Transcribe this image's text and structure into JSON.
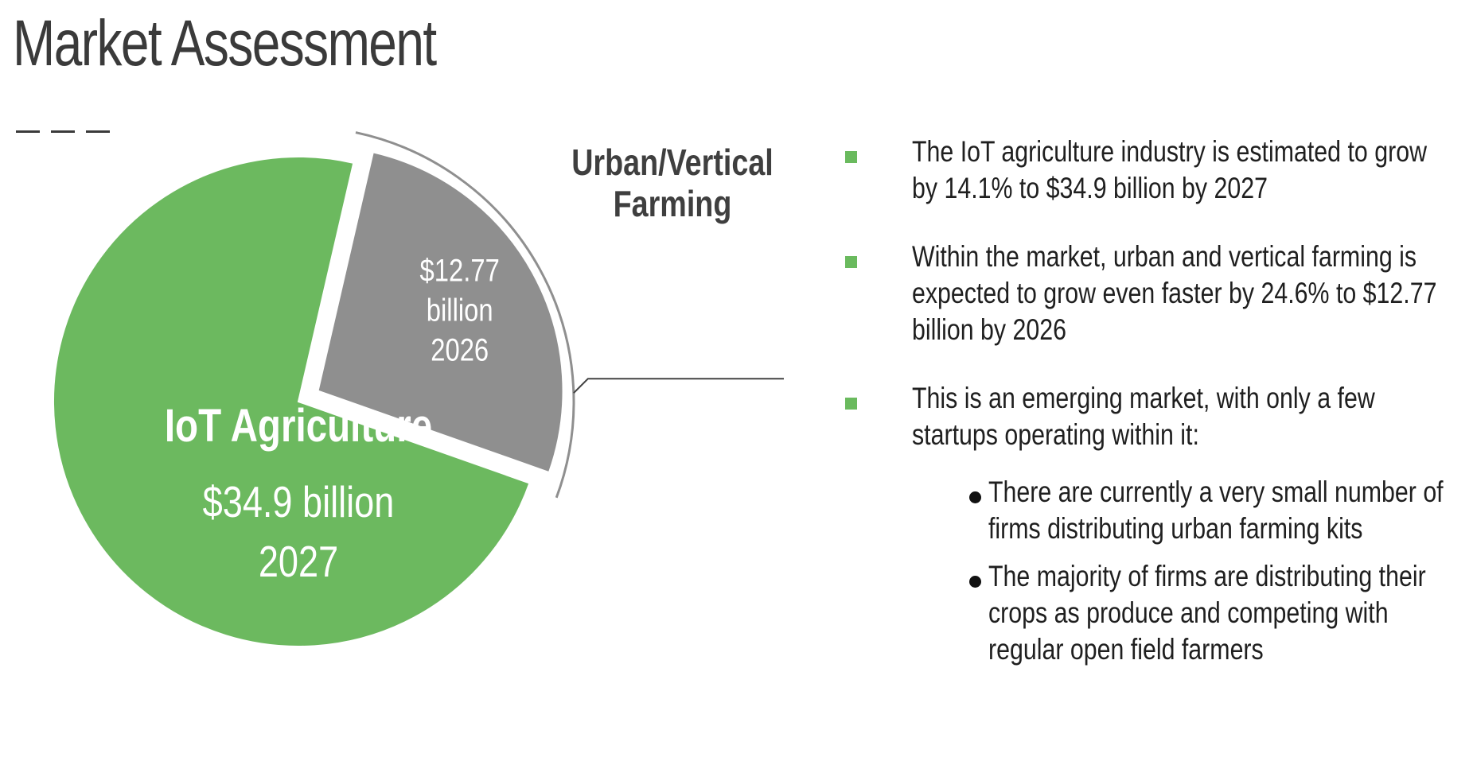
{
  "slide": {
    "title": "Market Assessment"
  },
  "chart_data": {
    "type": "pie",
    "title": "",
    "slices": [
      {
        "name": "IoT Agriculture",
        "value": 34.9,
        "label_lines": [
          "$34.9 billion",
          "2027"
        ],
        "color": "#6cb95f",
        "text_color": "#ffffff"
      },
      {
        "name": "Urban/Vertical Farming",
        "value": 12.77,
        "label_lines": [
          "$12.77",
          "billion",
          "2026"
        ],
        "color": "#8f8f8f",
        "text_color": "#ffffff",
        "exploded": true,
        "callout": [
          "Urban/Vertical",
          "Farming"
        ]
      }
    ],
    "legend": "none"
  },
  "bullets": [
    {
      "text": "The IoT agriculture industry is estimated to grow by 14.1% to $34.9 billion by 2027"
    },
    {
      "text": "Within the market, urban and vertical farming is expected to grow even faster by 24.6% to $12.77 billion by 2026"
    },
    {
      "text": "This is an emerging market, with only a few startups operating within it:",
      "sub": [
        "There are currently a very small number of firms distributing urban farming kits",
        "The majority of firms are distributing their crops as produce and competing with regular open field farmers"
      ]
    }
  ],
  "colors": {
    "accent_green": "#6aba5e",
    "slice_gray": "#8f8f8f",
    "title": "#3a3a3a"
  }
}
